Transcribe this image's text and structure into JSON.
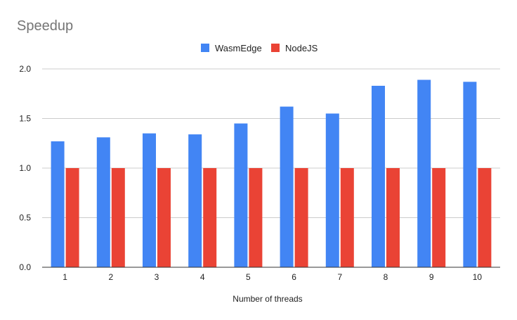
{
  "chart_data": {
    "type": "bar",
    "title": "Speedup",
    "xlabel": "Number of threads",
    "ylabel": "",
    "categories": [
      "1",
      "2",
      "3",
      "4",
      "5",
      "6",
      "7",
      "8",
      "9",
      "10"
    ],
    "series": [
      {
        "name": "WasmEdge",
        "color": "#4285f4",
        "values": [
          1.27,
          1.31,
          1.35,
          1.34,
          1.45,
          1.62,
          1.55,
          1.83,
          1.89,
          1.87
        ]
      },
      {
        "name": "NodeJS",
        "color": "#ea4335",
        "values": [
          1.0,
          1.0,
          1.0,
          1.0,
          1.0,
          1.0,
          1.0,
          1.0,
          1.0,
          1.0
        ]
      }
    ],
    "ylim": [
      0,
      2.0
    ],
    "yticks": [
      "0.0",
      "0.5",
      "1.0",
      "1.5",
      "2.0"
    ],
    "ytick_values": [
      0,
      0.5,
      1.0,
      1.5,
      2.0
    ],
    "grid": true,
    "legend_position": "top-center"
  }
}
